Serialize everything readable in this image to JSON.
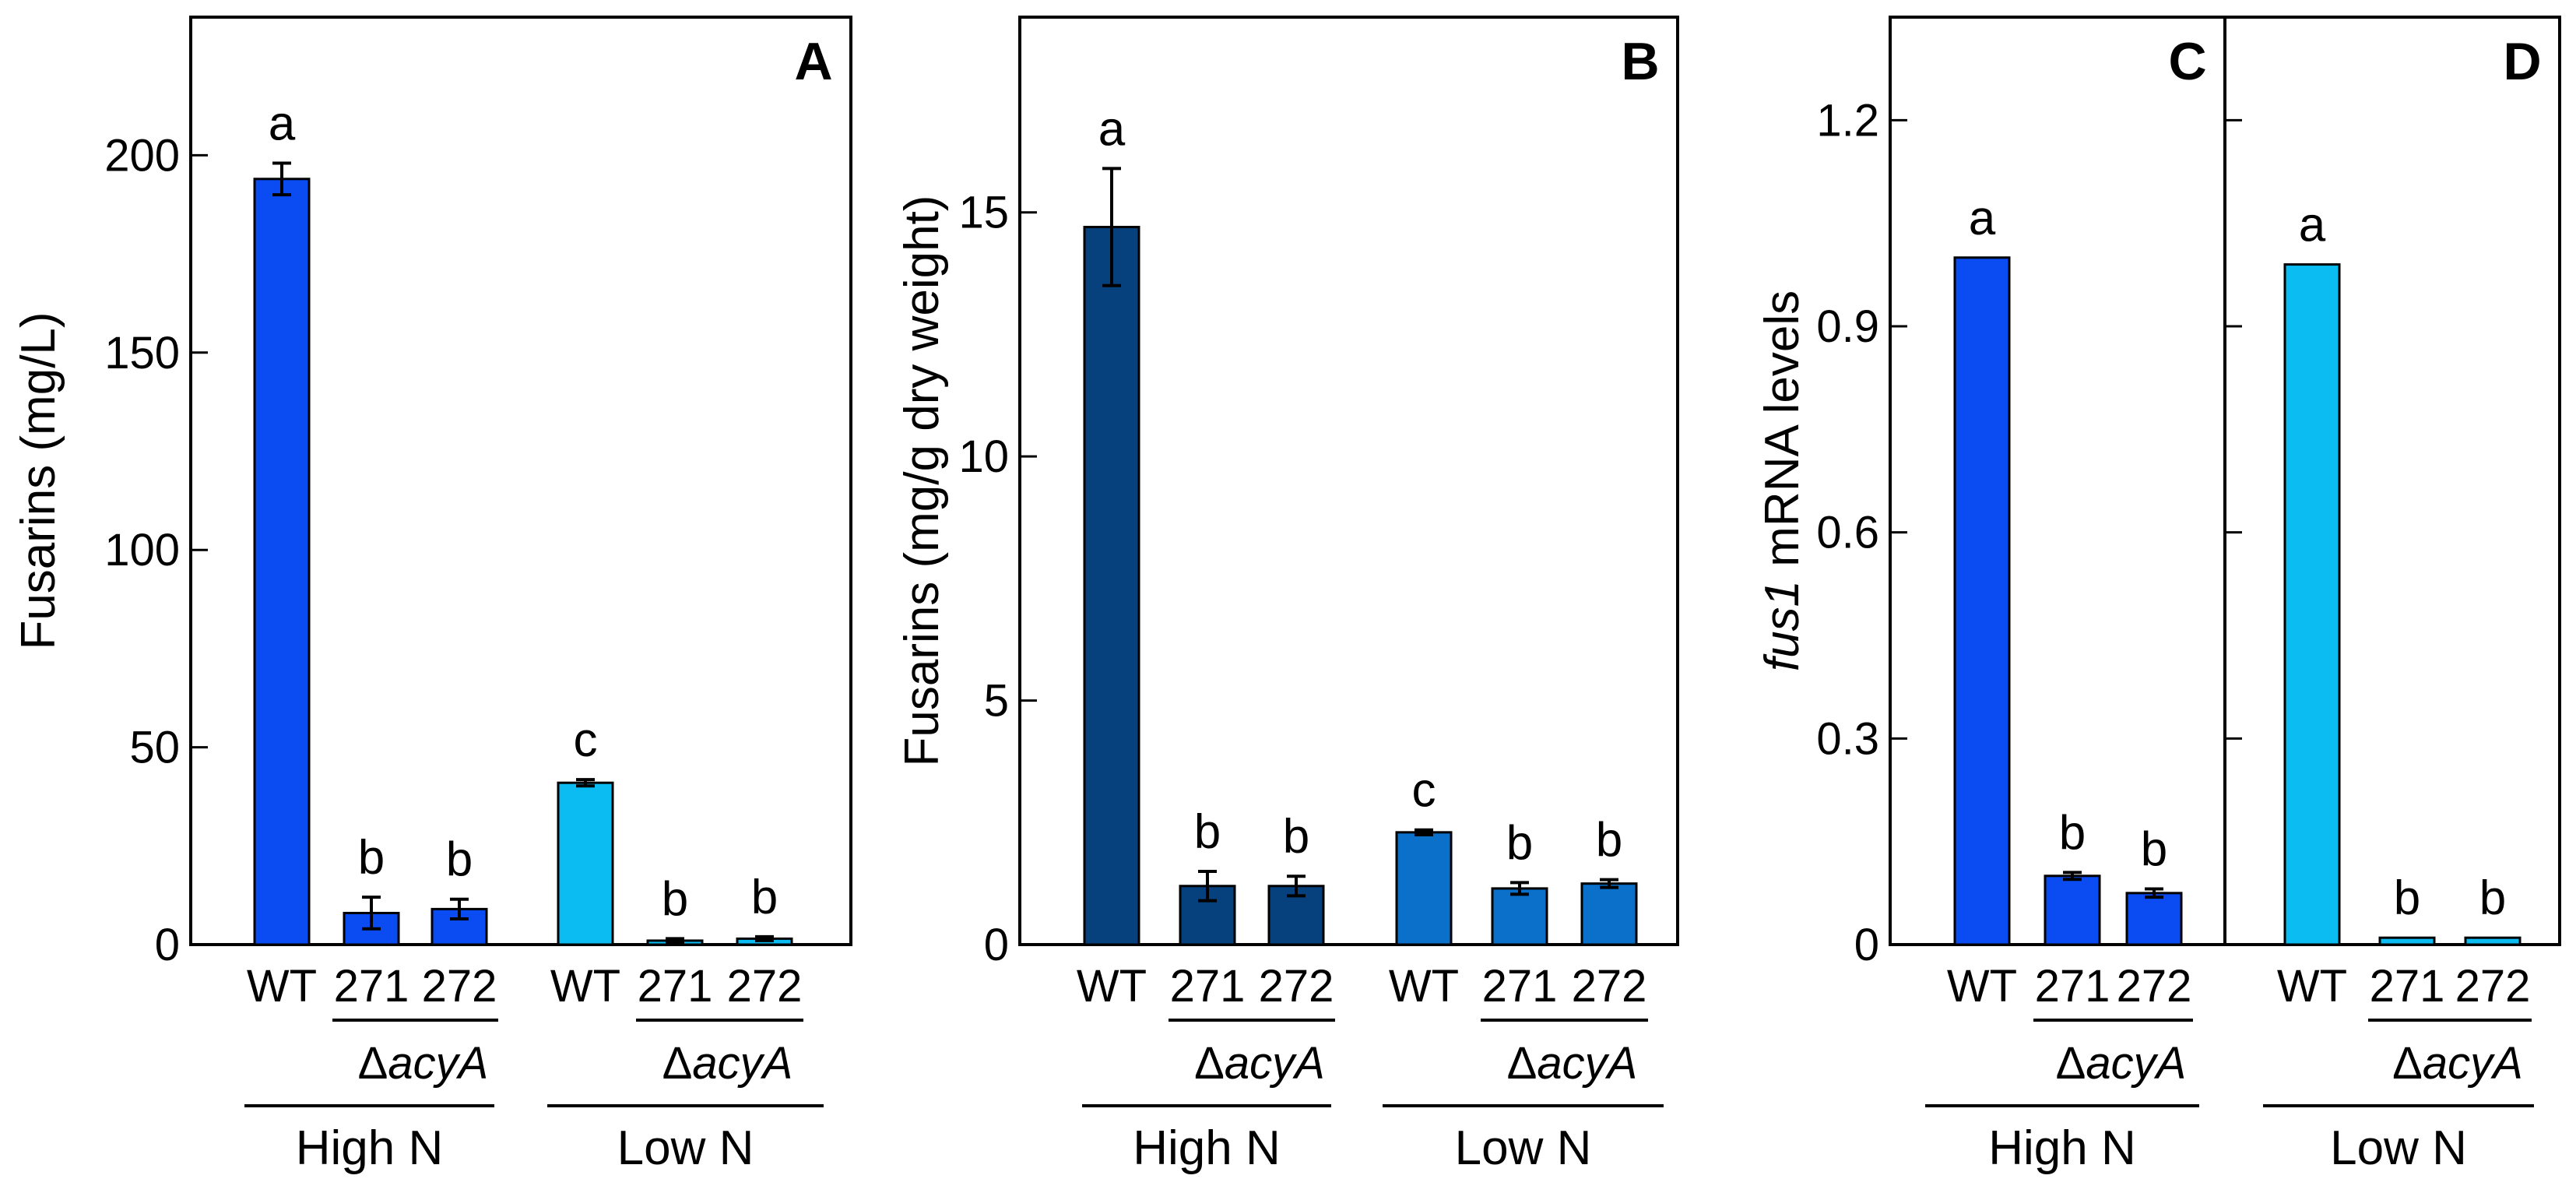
{
  "chart_data": [
    {
      "panel": "A",
      "type": "bar",
      "ylabel": "Fusarins (mg/L)",
      "ylim": [
        0,
        235
      ],
      "yticks": [
        0,
        50,
        100,
        150,
        200
      ],
      "categories": [
        "WT",
        "271",
        "272",
        "WT",
        "271",
        "272"
      ],
      "values": [
        194,
        8,
        9,
        41,
        1,
        1.5
      ],
      "errors": [
        4,
        4,
        2.5,
        0.8,
        0.5,
        0.5
      ],
      "letters": [
        "a",
        "b",
        "b",
        "c",
        "b",
        "b"
      ],
      "colors": [
        "#0a4cf2",
        "#0a4cf2",
        "#0a4cf2",
        "#0abcf2",
        "#0abcf2",
        "#0abcf2"
      ],
      "groups": [
        {
          "label": "High N",
          "mutant_label": "ΔacyA"
        },
        {
          "label": "Low N",
          "mutant_label": "ΔacyA"
        }
      ]
    },
    {
      "panel": "B",
      "type": "bar",
      "ylabel": "Fusarins (mg/g dry weight)",
      "ylim": [
        0,
        19
      ],
      "yticks": [
        0,
        5,
        10,
        15
      ],
      "categories": [
        "WT",
        "271",
        "272",
        "WT",
        "271",
        "272"
      ],
      "values": [
        14.7,
        1.2,
        1.2,
        2.3,
        1.15,
        1.25
      ],
      "errors": [
        1.2,
        0.3,
        0.2,
        0.05,
        0.12,
        0.08
      ],
      "letters": [
        "a",
        "b",
        "b",
        "c",
        "b",
        "b"
      ],
      "colors": [
        "#07417d",
        "#07417d",
        "#07417d",
        "#0a70c9",
        "#0a70c9",
        "#0a70c9"
      ],
      "groups": [
        {
          "label": "High N",
          "mutant_label": "ΔacyA"
        },
        {
          "label": "Low N",
          "mutant_label": "ΔacyA"
        }
      ]
    },
    {
      "panel": "C",
      "type": "bar",
      "ylabel_italic": "fus1",
      "ylabel": "mRNA levels",
      "ylim": [
        0,
        1.35
      ],
      "yticks": [
        0,
        0.3,
        0.6,
        0.9,
        1.2
      ],
      "ytick_labels": [
        "0",
        "0.3",
        "0.6",
        "0.9",
        "1.2"
      ],
      "categories": [
        "WT",
        "271",
        "272"
      ],
      "values": [
        1.0,
        0.1,
        0.075
      ],
      "errors": [
        0,
        0.005,
        0.006
      ],
      "letters": [
        "a",
        "b",
        "b"
      ],
      "colors": [
        "#0a4cf2",
        "#0a4cf2",
        "#0a4cf2"
      ],
      "groups": [
        {
          "label": "High N",
          "mutant_label": "ΔacyA"
        }
      ]
    },
    {
      "panel": "D",
      "type": "bar",
      "ylim": [
        0,
        1.35
      ],
      "yticks": [
        0,
        0.3,
        0.6,
        0.9,
        1.2
      ],
      "categories": [
        "WT",
        "271",
        "272"
      ],
      "values": [
        0.99,
        0.01,
        0.01
      ],
      "errors": [
        0,
        0,
        0
      ],
      "letters": [
        "a",
        "b",
        "b"
      ],
      "colors": [
        "#0abcf2",
        "#0abcf2",
        "#0abcf2"
      ],
      "groups": [
        {
          "label": "Low N",
          "mutant_label": "ΔacyA"
        }
      ]
    }
  ]
}
